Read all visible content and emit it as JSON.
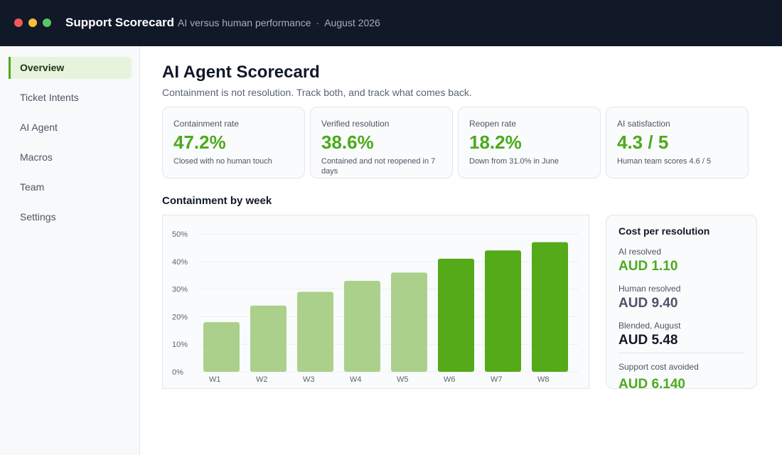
{
  "window": {
    "title": "Support Scorecard",
    "subtitle": "AI versus human performance",
    "period": "August 2026",
    "separator": "·"
  },
  "sidebar": {
    "items": [
      {
        "label": "Overview",
        "active": true
      },
      {
        "label": "Ticket Intents"
      },
      {
        "label": "AI Agent"
      },
      {
        "label": "Macros"
      },
      {
        "label": "Team"
      },
      {
        "label": "Settings"
      }
    ]
  },
  "page": {
    "title": "AI Agent Scorecard",
    "subtitle": "Containment is not resolution. Track both, and track what comes back."
  },
  "kpis": [
    {
      "label": "Containment rate",
      "value": "47.2%",
      "note": "Closed with no human touch"
    },
    {
      "label": "Verified resolution",
      "value": "38.6%",
      "note": "Contained and not reopened in 7 days"
    },
    {
      "label": "Reopen rate",
      "value": "18.2%",
      "note": "Down from 31.0% in June"
    },
    {
      "label": "AI satisfaction",
      "value": "4.3 / 5",
      "note": "Human team scores 4.6 / 5"
    }
  ],
  "chart_section": {
    "title": "Containment by week"
  },
  "chart_data": {
    "type": "bar",
    "categories": [
      "W1",
      "W2",
      "W3",
      "W4",
      "W5",
      "W6",
      "W7",
      "W8"
    ],
    "values": [
      18,
      24,
      29,
      33,
      36,
      41,
      44,
      47
    ],
    "highlight_from_index": 5,
    "ylim": [
      0,
      50
    ],
    "yticks": [
      0,
      10,
      20,
      30,
      40,
      50
    ],
    "ytick_labels": [
      "0%",
      "10%",
      "20%",
      "30%",
      "40%",
      "50%"
    ],
    "grid": true,
    "colors": {
      "light": "#abd08b",
      "dark": "#54aa19",
      "grid": "#eceff2",
      "tick_text": "#5b6472"
    }
  },
  "cost": {
    "title": "Cost per resolution",
    "items": [
      {
        "label": "AI resolved",
        "value": "AUD 1.10",
        "color": "#4caa1c"
      },
      {
        "label": "Human resolved",
        "value": "AUD 9.40",
        "color": "#4a5568"
      },
      {
        "label": "Blended, August",
        "value": "AUD 5.48",
        "color": "#111827"
      },
      {
        "label": "Support cost avoided",
        "value": "AUD 6,140",
        "color": "#4caa1c"
      }
    ]
  }
}
